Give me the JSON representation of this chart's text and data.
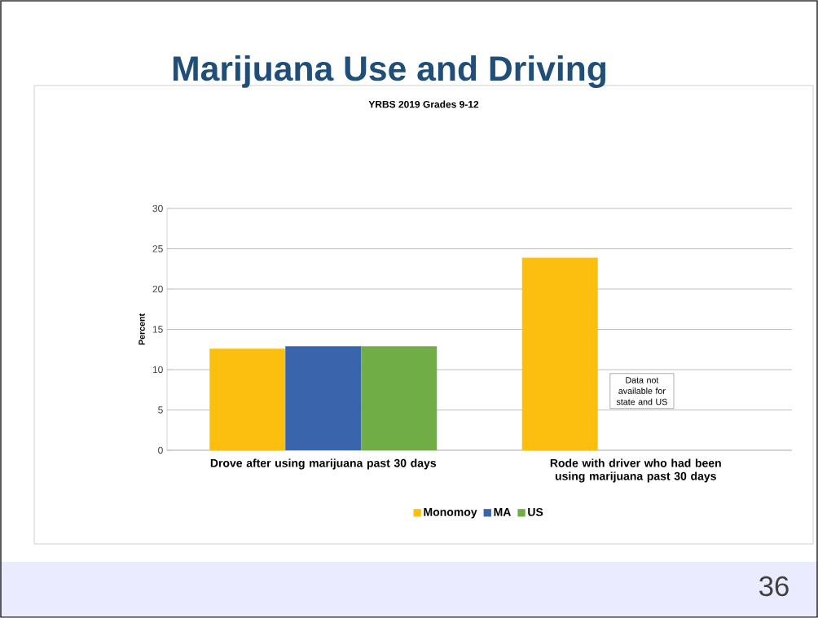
{
  "chart_data": {
    "type": "bar",
    "title": "Marijuana Use and Driving",
    "subtitle": "YRBS 2019 Grades 9-12",
    "ylabel": "Percent",
    "categories": [
      "Drove after using marijuana past 30 days",
      "Rode with driver who had been using marijuana past 30 days"
    ],
    "series": [
      {
        "name": "Monomoy",
        "color": "#fdbf0f",
        "values": [
          12.6,
          23.9
        ]
      },
      {
        "name": "MA",
        "color": "#3a64ab",
        "values": [
          12.9,
          null
        ]
      },
      {
        "name": "US",
        "color": "#70ad47",
        "values": [
          12.9,
          null
        ]
      }
    ],
    "ylim": [
      0,
      30
    ],
    "yticks": [
      0,
      5,
      10,
      15,
      20,
      25,
      30
    ],
    "grid": "y",
    "legend": "bottom",
    "annotations": [
      "Data not available for state and US",
      "36"
    ]
  }
}
